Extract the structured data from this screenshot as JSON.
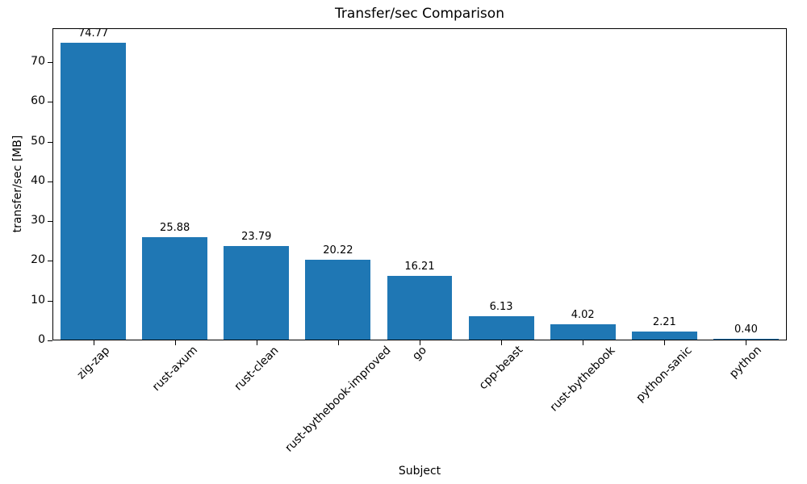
{
  "chart_data": {
    "type": "bar",
    "title": "Transfer/sec Comparison",
    "xlabel": "Subject",
    "ylabel": "transfer/sec [MB]",
    "categories": [
      "zig-zap",
      "rust-axum",
      "rust-clean",
      "rust-bythebook-improved",
      "go",
      "cpp-beast",
      "rust-bythebook",
      "python-sanic",
      "python"
    ],
    "values": [
      74.77,
      25.88,
      23.79,
      20.22,
      16.21,
      6.13,
      4.02,
      2.21,
      0.4
    ],
    "value_labels": [
      "74.77",
      "25.88",
      "23.79",
      "20.22",
      "16.21",
      "6.13",
      "4.02",
      "2.21",
      "0.40"
    ],
    "ylim": [
      0,
      78.5
    ],
    "yticks": [
      0,
      10,
      20,
      30,
      40,
      50,
      60,
      70
    ],
    "bar_color": "#1f77b4",
    "grid": false,
    "legend": null
  }
}
